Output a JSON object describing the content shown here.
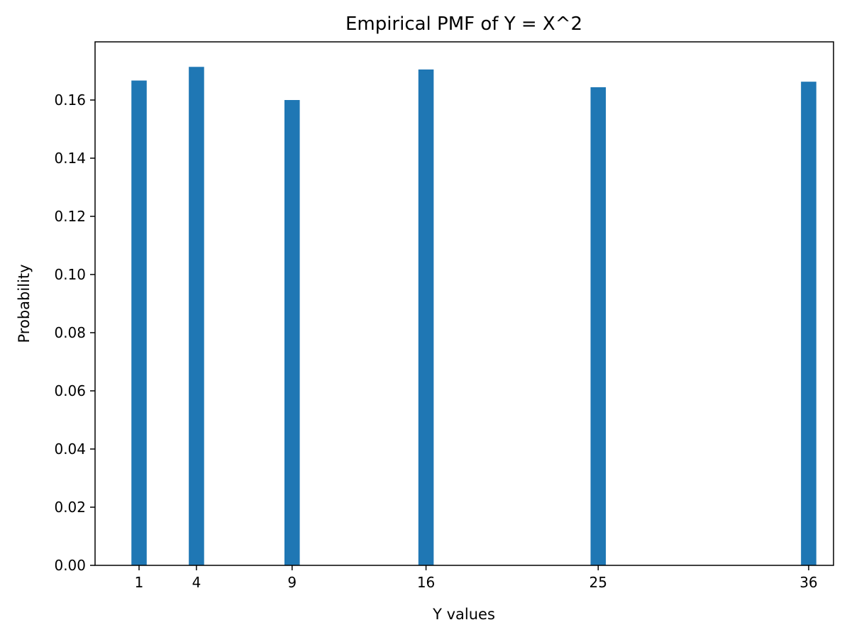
{
  "chart_data": {
    "type": "bar",
    "title": "Empirical PMF of Y = X^2",
    "xlabel": "Y values",
    "ylabel": "Probability",
    "x": [
      1,
      4,
      9,
      16,
      25,
      36
    ],
    "categories": [
      "1",
      "4",
      "9",
      "16",
      "25",
      "36"
    ],
    "values": [
      0.1667,
      0.1714,
      0.16,
      0.1705,
      0.1644,
      0.1663
    ],
    "xlim": [
      -1.3,
      37.3
    ],
    "ylim": [
      0,
      0.18
    ],
    "yticks": [
      0.0,
      0.02,
      0.04,
      0.06,
      0.08,
      0.1,
      0.12,
      0.14,
      0.16
    ],
    "ytick_labels": [
      "0.00",
      "0.02",
      "0.04",
      "0.06",
      "0.08",
      "0.10",
      "0.12",
      "0.14",
      "0.16"
    ],
    "bar_width": 0.8,
    "bar_color": "#1f77b4",
    "grid": false,
    "legend": false
  }
}
